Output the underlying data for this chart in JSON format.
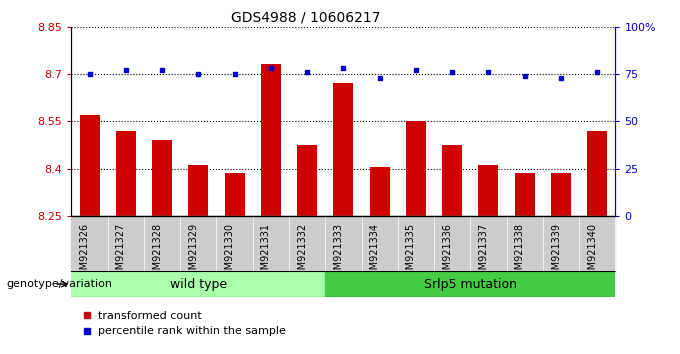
{
  "title": "GDS4988 / 10606217",
  "samples": [
    "GSM921326",
    "GSM921327",
    "GSM921328",
    "GSM921329",
    "GSM921330",
    "GSM921331",
    "GSM921332",
    "GSM921333",
    "GSM921334",
    "GSM921335",
    "GSM921336",
    "GSM921337",
    "GSM921338",
    "GSM921339",
    "GSM921340"
  ],
  "bar_values": [
    8.57,
    8.52,
    8.49,
    8.41,
    8.385,
    8.73,
    8.475,
    8.67,
    8.405,
    8.55,
    8.475,
    8.41,
    8.385,
    8.385,
    8.52
  ],
  "dot_values": [
    75,
    77,
    77,
    75,
    75,
    78,
    76,
    78,
    73,
    77,
    76,
    76,
    74,
    73,
    76
  ],
  "ylim_left": [
    8.25,
    8.85
  ],
  "ylim_right": [
    0,
    100
  ],
  "yticks_left": [
    8.25,
    8.4,
    8.55,
    8.7,
    8.85
  ],
  "yticks_right": [
    0,
    25,
    50,
    75,
    100
  ],
  "ytick_labels_right": [
    "0",
    "25",
    "50",
    "75",
    "100%"
  ],
  "bar_color": "#cc0000",
  "dot_color": "#0000cc",
  "bar_bottom": 8.25,
  "wild_type_samples": 7,
  "group1_label": "wild type",
  "group2_label": "Srlp5 mutation",
  "genotype_label": "genotype/variation",
  "legend_bar_label": "transformed count",
  "legend_dot_label": "percentile rank within the sample",
  "group1_color": "#aaffaa",
  "group2_color": "#44cc44",
  "xticklabel_bg": "#cccccc",
  "title_fontsize": 10,
  "tick_fontsize": 8,
  "label_fontsize": 8
}
